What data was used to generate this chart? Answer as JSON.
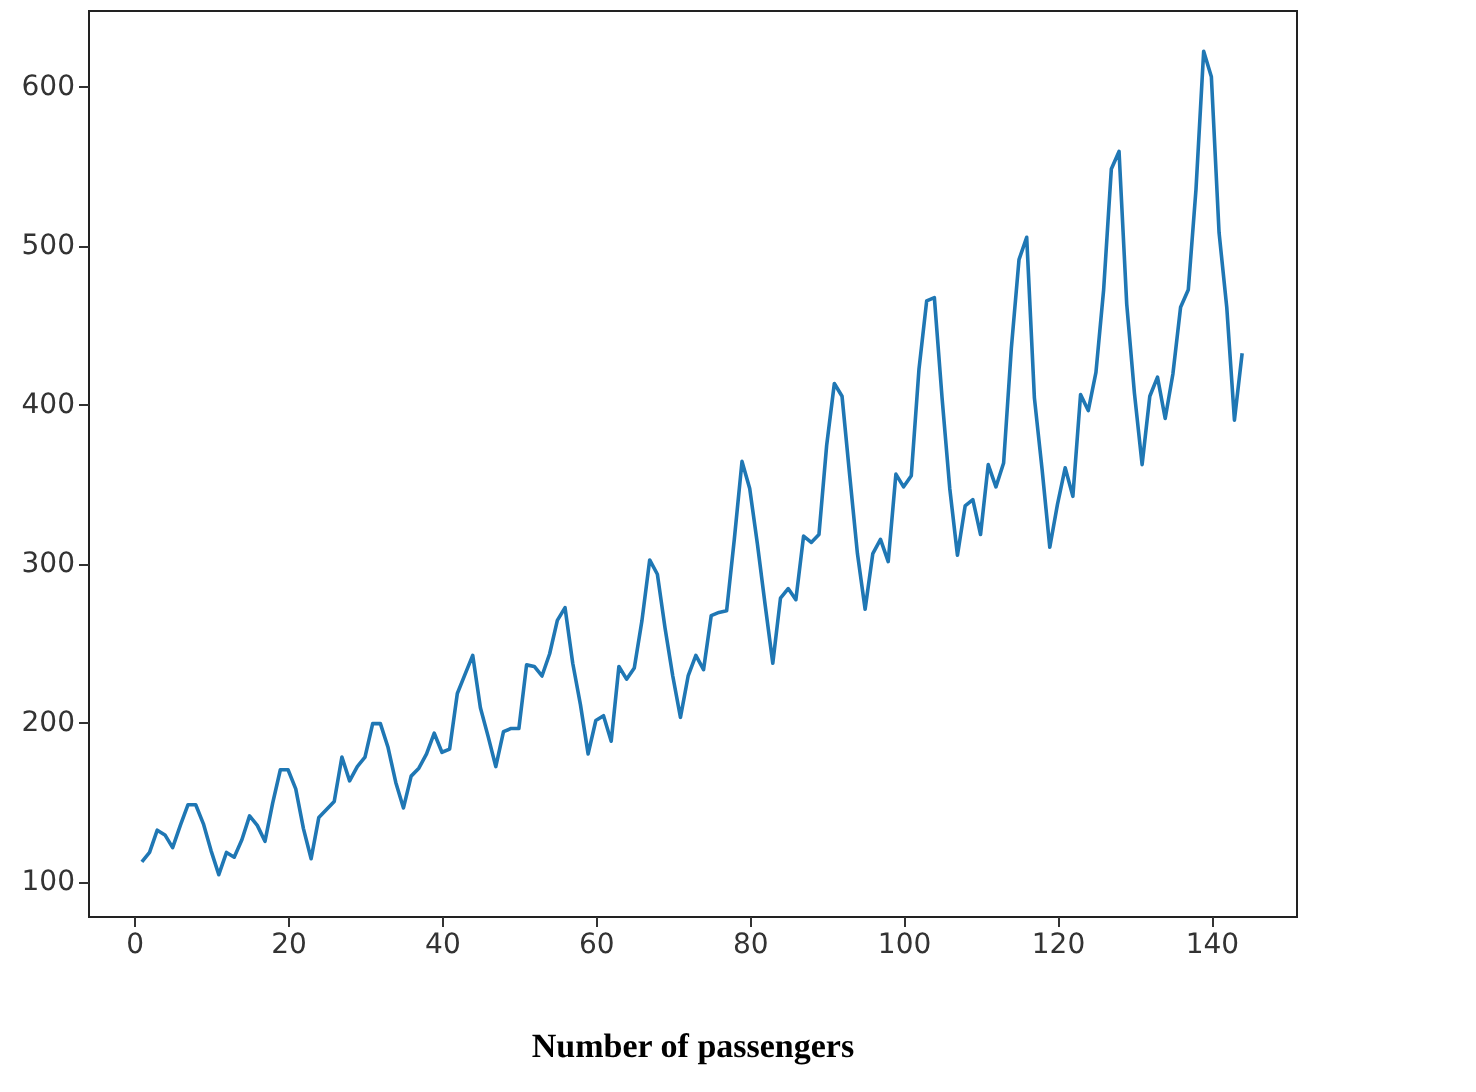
{
  "chart_data": {
    "type": "line",
    "xlabel": "Number of passengers",
    "x": [
      1,
      2,
      3,
      4,
      5,
      6,
      7,
      8,
      9,
      10,
      11,
      12,
      13,
      14,
      15,
      16,
      17,
      18,
      19,
      20,
      21,
      22,
      23,
      24,
      25,
      26,
      27,
      28,
      29,
      30,
      31,
      32,
      33,
      34,
      35,
      36,
      37,
      38,
      39,
      40,
      41,
      42,
      43,
      44,
      45,
      46,
      47,
      48,
      49,
      50,
      51,
      52,
      53,
      54,
      55,
      56,
      57,
      58,
      59,
      60,
      61,
      62,
      63,
      64,
      65,
      66,
      67,
      68,
      69,
      70,
      71,
      72,
      73,
      74,
      75,
      76,
      77,
      78,
      79,
      80,
      81,
      82,
      83,
      84,
      85,
      86,
      87,
      88,
      89,
      90,
      91,
      92,
      93,
      94,
      95,
      96,
      97,
      98,
      99,
      100,
      101,
      102,
      103,
      104,
      105,
      106,
      107,
      108,
      109,
      110,
      111,
      112,
      113,
      114,
      115,
      116,
      117,
      118,
      119,
      120,
      121,
      122,
      123,
      124,
      125,
      126,
      127,
      128,
      129,
      130,
      131,
      132,
      133,
      134,
      135,
      136,
      137,
      138,
      139,
      140,
      141,
      142,
      143,
      144
    ],
    "series": [
      {
        "color": "#1f77b4",
        "values": [
          112,
          118,
          132,
          129,
          121,
          135,
          148,
          148,
          136,
          119,
          104,
          118,
          115,
          126,
          141,
          135,
          125,
          149,
          170,
          170,
          158,
          133,
          114,
          140,
          145,
          150,
          178,
          163,
          172,
          178,
          199,
          199,
          184,
          162,
          146,
          166,
          171,
          180,
          193,
          181,
          183,
          218,
          230,
          242,
          209,
          191,
          172,
          194,
          196,
          196,
          236,
          235,
          229,
          243,
          264,
          272,
          237,
          211,
          180,
          201,
          204,
          188,
          235,
          227,
          234,
          264,
          302,
          293,
          259,
          229,
          203,
          229,
          242,
          233,
          267,
          269,
          270,
          315,
          364,
          347,
          312,
          274,
          237,
          278,
          284,
          277,
          317,
          313,
          318,
          374,
          413,
          405,
          355,
          306,
          271,
          306,
          315,
          301,
          356,
          348,
          355,
          422,
          465,
          467,
          404,
          347,
          305,
          336,
          340,
          318,
          362,
          348,
          363,
          435,
          491,
          505,
          404,
          359,
          310,
          337,
          360,
          342,
          406,
          396,
          420,
          472,
          548,
          559,
          463,
          407,
          362,
          405,
          417,
          391,
          419,
          461,
          472,
          535,
          622,
          606,
          508,
          461,
          390,
          432
        ]
      }
    ],
    "xlim": [
      -6,
      151
    ],
    "xticks": [
      0,
      20,
      40,
      60,
      80,
      100,
      120,
      140
    ],
    "ylim": [
      78,
      648
    ],
    "yticks": [
      100,
      200,
      300,
      400,
      500,
      600
    ],
    "grid": false,
    "marker": "none",
    "line_style": "solid"
  }
}
